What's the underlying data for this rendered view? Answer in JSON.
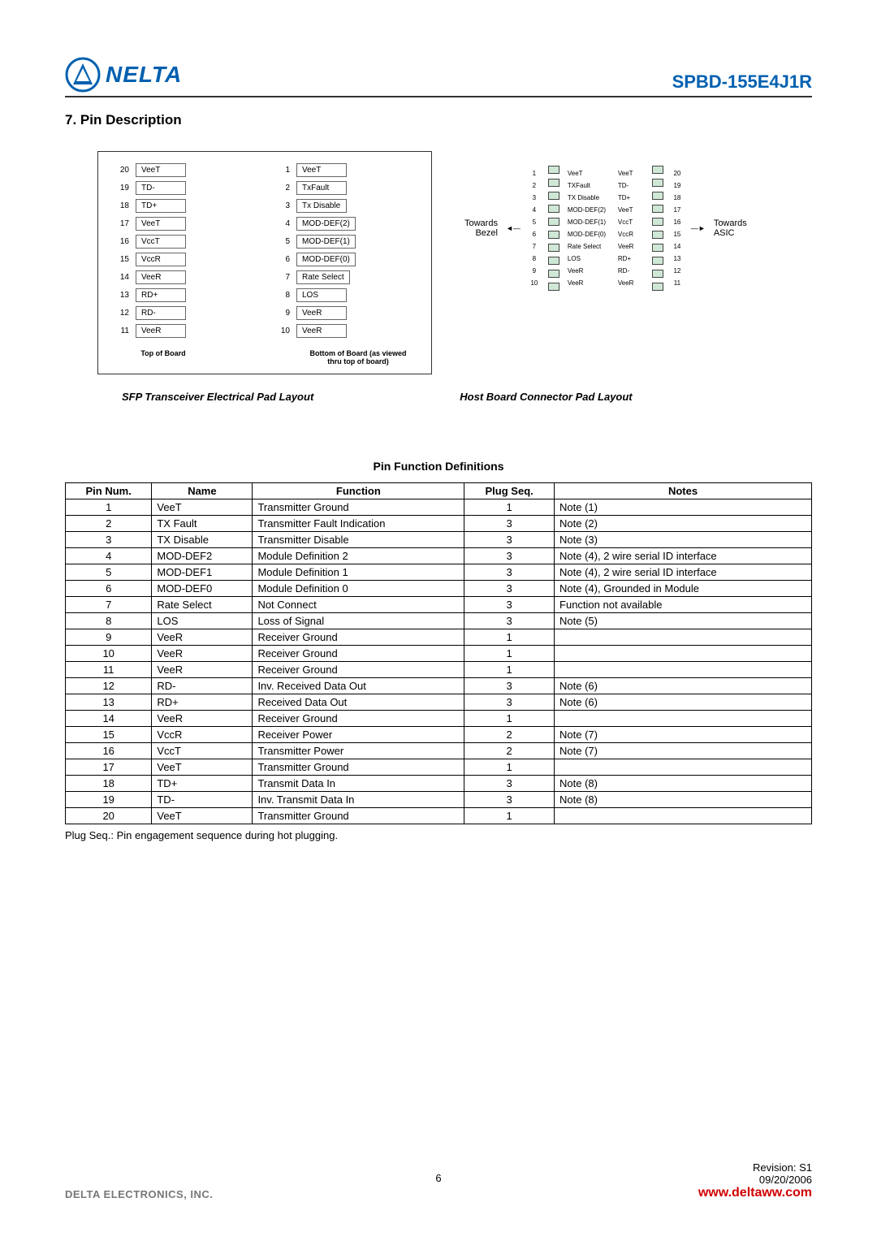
{
  "header": {
    "logo_text": "NELTA",
    "part_number": "SPBD-155E4J1R"
  },
  "section_title": "7. Pin Description",
  "diagram": {
    "top_col": [
      {
        "num": "20",
        "label": "VeeT"
      },
      {
        "num": "19",
        "label": "TD-"
      },
      {
        "num": "18",
        "label": "TD+"
      },
      {
        "num": "17",
        "label": "VeeT"
      },
      {
        "num": "16",
        "label": "VccT"
      },
      {
        "num": "15",
        "label": "VccR"
      },
      {
        "num": "14",
        "label": "VeeR"
      },
      {
        "num": "13",
        "label": "RD+"
      },
      {
        "num": "12",
        "label": "RD-"
      },
      {
        "num": "11",
        "label": "VeeR"
      }
    ],
    "bottom_col": [
      {
        "num": "1",
        "label": "VeeT"
      },
      {
        "num": "2",
        "label": "TxFault"
      },
      {
        "num": "3",
        "label": "Tx Disable"
      },
      {
        "num": "4",
        "label": "MOD-DEF(2)"
      },
      {
        "num": "5",
        "label": "MOD-DEF(1)"
      },
      {
        "num": "6",
        "label": "MOD-DEF(0)"
      },
      {
        "num": "7",
        "label": "Rate Select"
      },
      {
        "num": "8",
        "label": "LOS"
      },
      {
        "num": "9",
        "label": "VeeR"
      },
      {
        "num": "10",
        "label": "VeeR"
      }
    ],
    "top_label": "Top of Board",
    "bottom_label_1": "Bottom of Board (as viewed",
    "bottom_label_2": "thru top of board)",
    "host_left": [
      {
        "n": "1",
        "l": "VeeT"
      },
      {
        "n": "2",
        "l": "TXFault"
      },
      {
        "n": "3",
        "l": "TX Disable"
      },
      {
        "n": "4",
        "l": "MOD-DEF(2)"
      },
      {
        "n": "5",
        "l": "MOD-DEF(1)"
      },
      {
        "n": "6",
        "l": "MOD-DEF(0)"
      },
      {
        "n": "7",
        "l": "Rate Select"
      },
      {
        "n": "8",
        "l": "LOS"
      },
      {
        "n": "9",
        "l": "VeeR"
      },
      {
        "n": "10",
        "l": "VeeR"
      }
    ],
    "host_right": [
      {
        "n": "20",
        "l": "VeeT"
      },
      {
        "n": "19",
        "l": "TD-"
      },
      {
        "n": "18",
        "l": "TD+"
      },
      {
        "n": "17",
        "l": "VeeT"
      },
      {
        "n": "16",
        "l": "VccT"
      },
      {
        "n": "15",
        "l": "VccR"
      },
      {
        "n": "14",
        "l": "VeeR"
      },
      {
        "n": "13",
        "l": "RD+"
      },
      {
        "n": "12",
        "l": "RD-"
      },
      {
        "n": "11",
        "l": "VeeR"
      }
    ],
    "towards_bezel": "Towards\nBezel",
    "towards_asic": "Towards\nASIC",
    "caption_left": "SFP Transceiver Electrical Pad Layout",
    "caption_right": "Host Board Connector Pad Layout",
    "pad_color": "#cfe8d6"
  },
  "table": {
    "title": "Pin Function Definitions",
    "columns": [
      "Pin Num.",
      "Name",
      "Function",
      "Plug Seq.",
      "Notes"
    ],
    "rows": [
      [
        "1",
        "VeeT",
        "Transmitter Ground",
        "1",
        "Note (1)"
      ],
      [
        "2",
        "TX Fault",
        "Transmitter Fault Indication",
        "3",
        "Note (2)"
      ],
      [
        "3",
        "TX Disable",
        "Transmitter Disable",
        "3",
        "Note (3)"
      ],
      [
        "4",
        "MOD-DEF2",
        "Module Definition 2",
        "3",
        "Note (4), 2 wire serial ID interface"
      ],
      [
        "5",
        "MOD-DEF1",
        "Module Definition 1",
        "3",
        "Note (4), 2 wire serial ID interface"
      ],
      [
        "6",
        "MOD-DEF0",
        "Module Definition 0",
        "3",
        "Note (4), Grounded in Module"
      ],
      [
        "7",
        "Rate Select",
        "Not Connect",
        "3",
        "Function not available"
      ],
      [
        "8",
        "LOS",
        "Loss of Signal",
        "3",
        "Note (5)"
      ],
      [
        "9",
        "VeeR",
        "Receiver Ground",
        "1",
        ""
      ],
      [
        "10",
        "VeeR",
        "Receiver Ground",
        "1",
        ""
      ],
      [
        "11",
        "VeeR",
        "Receiver Ground",
        "1",
        ""
      ],
      [
        "12",
        "RD-",
        "Inv. Received Data Out",
        "3",
        "Note (6)"
      ],
      [
        "13",
        "RD+",
        "Received Data Out",
        "3",
        "Note (6)"
      ],
      [
        "14",
        "VeeR",
        "Receiver Ground",
        "1",
        ""
      ],
      [
        "15",
        "VccR",
        "Receiver Power",
        "2",
        "Note (7)"
      ],
      [
        "16",
        "VccT",
        "Transmitter Power",
        "2",
        "Note (7)"
      ],
      [
        "17",
        "VeeT",
        "Transmitter Ground",
        "1",
        ""
      ],
      [
        "18",
        "TD+",
        "Transmit Data In",
        "3",
        "Note (8)"
      ],
      [
        "19",
        "TD-",
        "Inv. Transmit Data In",
        "3",
        "Note (8)"
      ],
      [
        "20",
        "VeeT",
        "Transmitter Ground",
        "1",
        ""
      ]
    ]
  },
  "footnote": "Plug Seq.: Pin engagement sequence during hot plugging.",
  "footer": {
    "company": "DELTA ELECTRONICS, INC.",
    "page": "6",
    "revision": "Revision:  S1",
    "date": "09/20/2006",
    "url": "www.deltaww.com"
  }
}
